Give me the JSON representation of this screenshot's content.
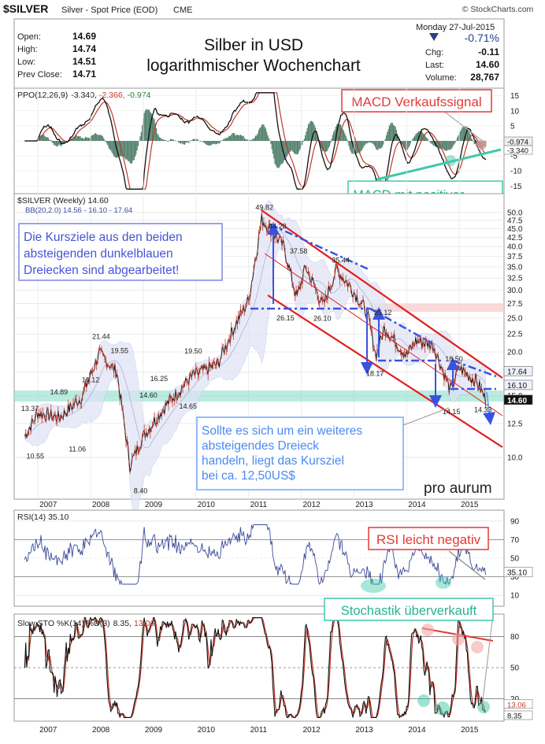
{
  "header": {
    "symbol": "$SILVER",
    "desc": "Silver - Spot Price (EOD)",
    "exch": "CME",
    "source": "© StockCharts.com",
    "date": "Monday  27-Jul-2015",
    "pct": "-0.71%"
  },
  "quote": {
    "rows": [
      {
        "label": "Open:",
        "value": "14.69"
      },
      {
        "label": "High:",
        "value": "14.74"
      },
      {
        "label": "Low:",
        "value": "14.51"
      },
      {
        "label": "Prev Close:",
        "value": "14.71"
      }
    ],
    "right": [
      {
        "label": "Chg:",
        "value": "-0.11"
      },
      {
        "label": "Last:",
        "value": "14.60"
      },
      {
        "label": "Volume:",
        "value": "28,767"
      }
    ]
  },
  "title": {
    "line1": "Silber in USD",
    "line2": "logarithmischer Wochenchart"
  },
  "ppo": {
    "label": "PPO(12,26,9)",
    "v1": "-3.340,",
    "v2": "-2.366,",
    "v3": "-0.974",
    "ticks": [
      "15",
      "10",
      "5",
      "0",
      "-5",
      "-10",
      "-15"
    ],
    "right_tags": [
      "-0.974",
      "-3.340"
    ],
    "annotation1": "MACD Verkaufssignal",
    "annotation2": "MACD mit positiver Divergenz. Die letzten Preistiefs wurden nicht bestätigt"
  },
  "price": {
    "label": "$SILVER (Weekly) 14.60",
    "bb_label": "BB(20,2.0) 14.56 - 16.10 - 17.64",
    "ticks": [
      "50.0",
      "47.5",
      "45.0",
      "42.5",
      "40.0",
      "37.5",
      "35.0",
      "32.5",
      "30.0",
      "27.5",
      "25.0",
      "22.5",
      "20.0",
      "17.5",
      "15.0",
      "12.5",
      "10.0"
    ],
    "right_tags": [
      "17.64",
      "16.10",
      "14.60"
    ],
    "note1": "Die Kursziele aus den beiden absteigenden dunkelblauen Dreiecken sind abgearbeitet!",
    "note2": "Sollte es sich um ein weiteres absteigendes Dreieck handeln, liegt das Kursziel bei ca. 12,50US$",
    "logo": "pro aurum",
    "point_labels": [
      "49.82",
      "44.28",
      "37.58",
      "35.44",
      "26.15",
      "26.10",
      "25.12",
      "18.50",
      "18.17",
      "14.15",
      "14.33",
      "21.44",
      "19.55",
      "19.50",
      "16.25",
      "16.12",
      "14.89",
      "14.60",
      "14.65",
      "13.37",
      "10.55",
      "11.06",
      "8.40"
    ],
    "years": [
      "2007",
      "2008",
      "2009",
      "2010",
      "2011",
      "2012",
      "2013",
      "2014",
      "2015"
    ]
  },
  "rsi": {
    "label": "RSI(14) 35.10",
    "ticks": [
      "90",
      "70",
      "50",
      "30",
      "10"
    ],
    "right_tag": "35.10",
    "annotation": "RSI leicht negativ"
  },
  "sto": {
    "label": "Slow STO %K(14) %D(3)",
    "k": "8.35,",
    "d": "13.06",
    "ticks": [
      "80",
      "50",
      "20"
    ],
    "right_tags": [
      "13.06",
      "8.35"
    ],
    "annotation": "Stochastik überverkauft"
  },
  "chart_data": {
    "type": "line",
    "title": "Silber in USD logarithmischer Wochenchart",
    "scale": "log",
    "x": [
      "2006-10",
      "2007-01",
      "2007-06",
      "2007-11",
      "2008-03",
      "2008-07",
      "2008-10",
      "2009-01",
      "2009-06",
      "2009-12",
      "2010-06",
      "2010-10",
      "2011-01",
      "2011-04",
      "2011-09",
      "2011-12",
      "2012-02",
      "2012-06",
      "2012-09",
      "2012-12",
      "2013-04",
      "2013-06",
      "2013-08",
      "2014-01",
      "2014-03",
      "2014-07",
      "2014-11",
      "2015-01",
      "2015-05",
      "2015-07"
    ],
    "series": [
      {
        "name": "$SILVER",
        "values": [
          11.5,
          13.4,
          13.0,
          14.9,
          19.8,
          17.5,
          9.5,
          11.5,
          14.0,
          17.0,
          18.5,
          24.0,
          28.0,
          48.0,
          40.0,
          28.5,
          35.0,
          27.0,
          34.5,
          31.0,
          26.0,
          19.5,
          23.5,
          19.5,
          21.5,
          21.0,
          15.5,
          18.0,
          16.5,
          14.6
        ]
      }
    ],
    "ylim": [
      7.5,
      50
    ],
    "legend": "top-left"
  }
}
